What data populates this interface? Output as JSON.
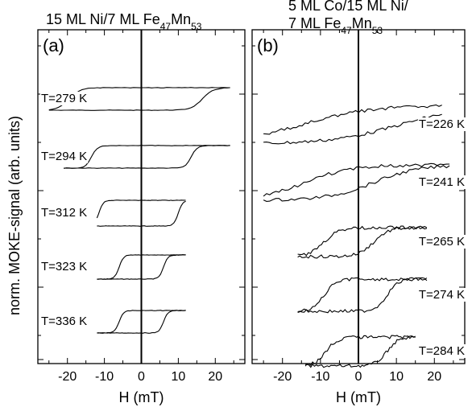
{
  "ylabel": "norm. MOKE-signal (arb. units)",
  "chart_data": [
    {
      "type": "line",
      "panel_label": "(a)",
      "title": "15 ML Ni/7 ML Fe47Mn53",
      "title_rich": [
        {
          "t": "15 ML Ni/7 ML Fe"
        },
        {
          "t": "47",
          "sub": true
        },
        {
          "t": "Mn"
        },
        {
          "t": "53",
          "sub": true
        }
      ],
      "xlabel": "H (mT)",
      "xlim": [
        -28,
        28
      ],
      "xticks": [
        -20,
        -10,
        0,
        10,
        20
      ],
      "xtick_labels": [
        "-20",
        "-10",
        "0",
        "10",
        "20"
      ],
      "grid": false,
      "series": [
        {
          "label": "T=279 K",
          "lower_switch": -19.5,
          "upper_switch": 16.5,
          "width": 1.5,
          "h_min": -25,
          "h_max": 24
        },
        {
          "label": "T=294 K",
          "lower_switch": -13.5,
          "upper_switch": 13.5,
          "width": 0.8,
          "h_min": -21,
          "h_max": 24
        },
        {
          "label": "T=312 K",
          "lower_switch": -11.5,
          "upper_switch": 10.0,
          "width": 0.6,
          "h_min": -12,
          "h_max": 12
        },
        {
          "label": "T=323 K",
          "lower_switch": -6.0,
          "upper_switch": 6.0,
          "width": 0.6,
          "h_min": -12,
          "h_max": 12
        },
        {
          "label": "T=336 K",
          "lower_switch": -6.0,
          "upper_switch": 6.0,
          "width": 0.6,
          "h_min": -12,
          "h_max": 12
        }
      ]
    },
    {
      "type": "line",
      "panel_label": "(b)",
      "title_lines": [
        "5 ML Co/15 ML Ni/",
        "7 ML Fe47Mn53"
      ],
      "title_rich_lines": [
        [
          {
            "t": "5 ML Co/15 ML Ni/"
          }
        ],
        [
          {
            "t": "7 ML Fe"
          },
          {
            "t": "47",
            "sub": true
          },
          {
            "t": "Mn"
          },
          {
            "t": "53",
            "sub": true
          }
        ]
      ],
      "xlabel": "H (mT)",
      "xlim": [
        -28,
        28
      ],
      "xticks": [
        -20,
        -10,
        0,
        10,
        20
      ],
      "xtick_labels": [
        "-20",
        "-10",
        "0",
        "10",
        "20"
      ],
      "grid": false,
      "series": [
        {
          "label": "T=226 K",
          "lower_switch": -15.0,
          "upper_switch": 11.0,
          "width": 9,
          "h_min": -25,
          "h_max": 22
        },
        {
          "label": "T=241 K",
          "lower_switch": -14.0,
          "upper_switch": 4.0,
          "width": 6,
          "h_min": -25,
          "h_max": 24
        },
        {
          "label": "T=265 K",
          "lower_switch": -9.0,
          "upper_switch": 4.0,
          "width": 2,
          "h_min": -16,
          "h_max": 18
        },
        {
          "label": "T=274 K",
          "lower_switch": -9.0,
          "upper_switch": 7.5,
          "width": 1.5,
          "h_min": -16,
          "h_max": 18
        },
        {
          "label": "T=284 K",
          "lower_switch": -8.5,
          "upper_switch": 7.5,
          "width": 1.5,
          "h_min": -14,
          "h_max": 15
        }
      ]
    }
  ]
}
